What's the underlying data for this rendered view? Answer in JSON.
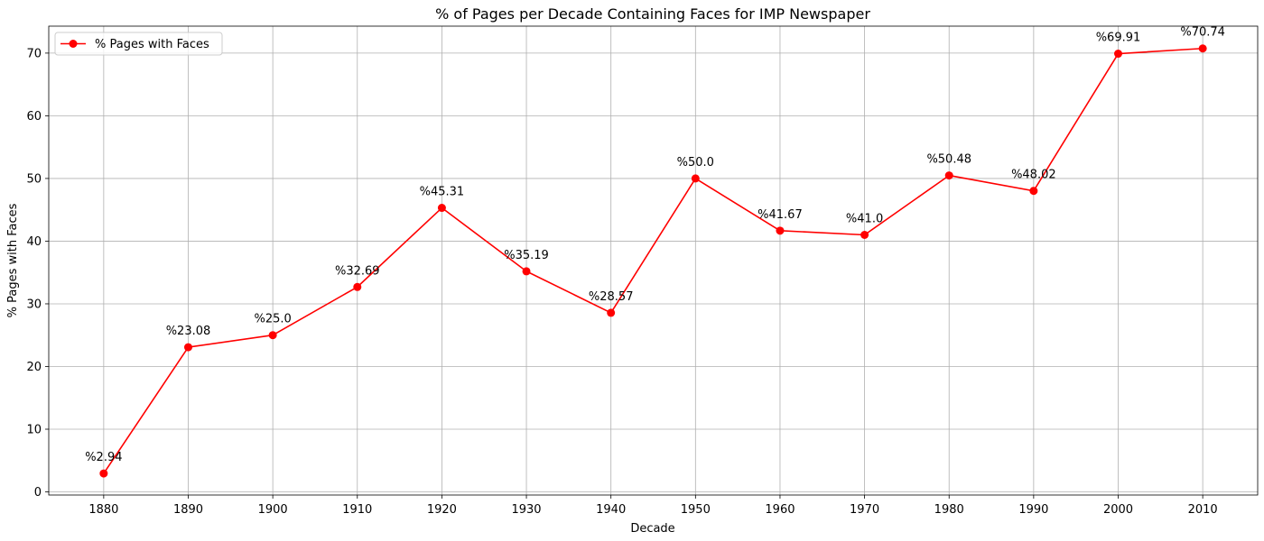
{
  "chart_data": {
    "type": "line",
    "title": "% of Pages per Decade Containing Faces for IMP Newspaper",
    "xlabel": "Decade",
    "ylabel": "% Pages with Faces",
    "categories": [
      1880,
      1890,
      1900,
      1910,
      1920,
      1930,
      1940,
      1950,
      1960,
      1970,
      1980,
      1990,
      2000,
      2010
    ],
    "series": [
      {
        "name": "% Pages with Faces",
        "values": [
          2.94,
          23.08,
          25.0,
          32.69,
          45.31,
          35.19,
          28.57,
          50.0,
          41.67,
          41.0,
          50.48,
          48.02,
          69.91,
          70.74
        ],
        "color": "#ff0000",
        "marker": "circle"
      }
    ],
    "data_labels": [
      "%2.94",
      "%23.08",
      "%25.0",
      "%32.69",
      "%45.31",
      "%35.19",
      "%28.57",
      "%50.0",
      "%41.67",
      "%41.0",
      "%50.48",
      "%48.02",
      "%69.91",
      "%70.74"
    ],
    "x_ticks": [
      "1880",
      "1890",
      "1900",
      "1910",
      "1920",
      "1930",
      "1940",
      "1950",
      "1960",
      "1970",
      "1980",
      "1990",
      "2000",
      "2010"
    ],
    "y_ticks": [
      0,
      10,
      20,
      30,
      40,
      50,
      60,
      70
    ],
    "xlim": [
      1873.5,
      2016.5
    ],
    "ylim": [
      -0.5,
      74.3
    ],
    "grid": true,
    "legend_position": "upper-left"
  }
}
